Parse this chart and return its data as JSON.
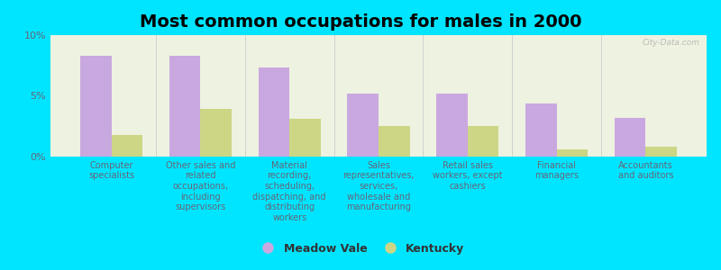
{
  "title": "Most common occupations for males in 2000",
  "categories": [
    "Computer\nspecialists",
    "Other sales and\nrelated\noccupations,\nincluding\nsupervisors",
    "Material\nrecording,\nscheduling,\ndispatching, and\ndistributing\nworkers",
    "Sales\nrepresentatives,\nservices,\nwholesale and\nmanufacturing",
    "Retail sales\nworkers, except\ncashiers",
    "Financial\nmanagers",
    "Accountants\nand auditors"
  ],
  "meadow_vale": [
    8.3,
    8.3,
    7.3,
    5.2,
    5.2,
    4.4,
    3.2
  ],
  "kentucky": [
    1.8,
    3.9,
    3.1,
    2.5,
    2.5,
    0.6,
    0.8
  ],
  "meadow_vale_color": "#c9a8e0",
  "kentucky_color": "#cdd685",
  "bg_outer": "#00e5ff",
  "bg_plot": "#eef2e0",
  "ylim": [
    0,
    10
  ],
  "yticks": [
    0,
    5,
    10
  ],
  "ytick_labels": [
    "0%",
    "5%",
    "10%"
  ],
  "bar_width": 0.35,
  "legend_labels": [
    "Meadow Vale",
    "Kentucky"
  ],
  "title_fontsize": 14,
  "tick_fontsize": 7,
  "legend_fontsize": 9,
  "separator_color": "#cccccc"
}
